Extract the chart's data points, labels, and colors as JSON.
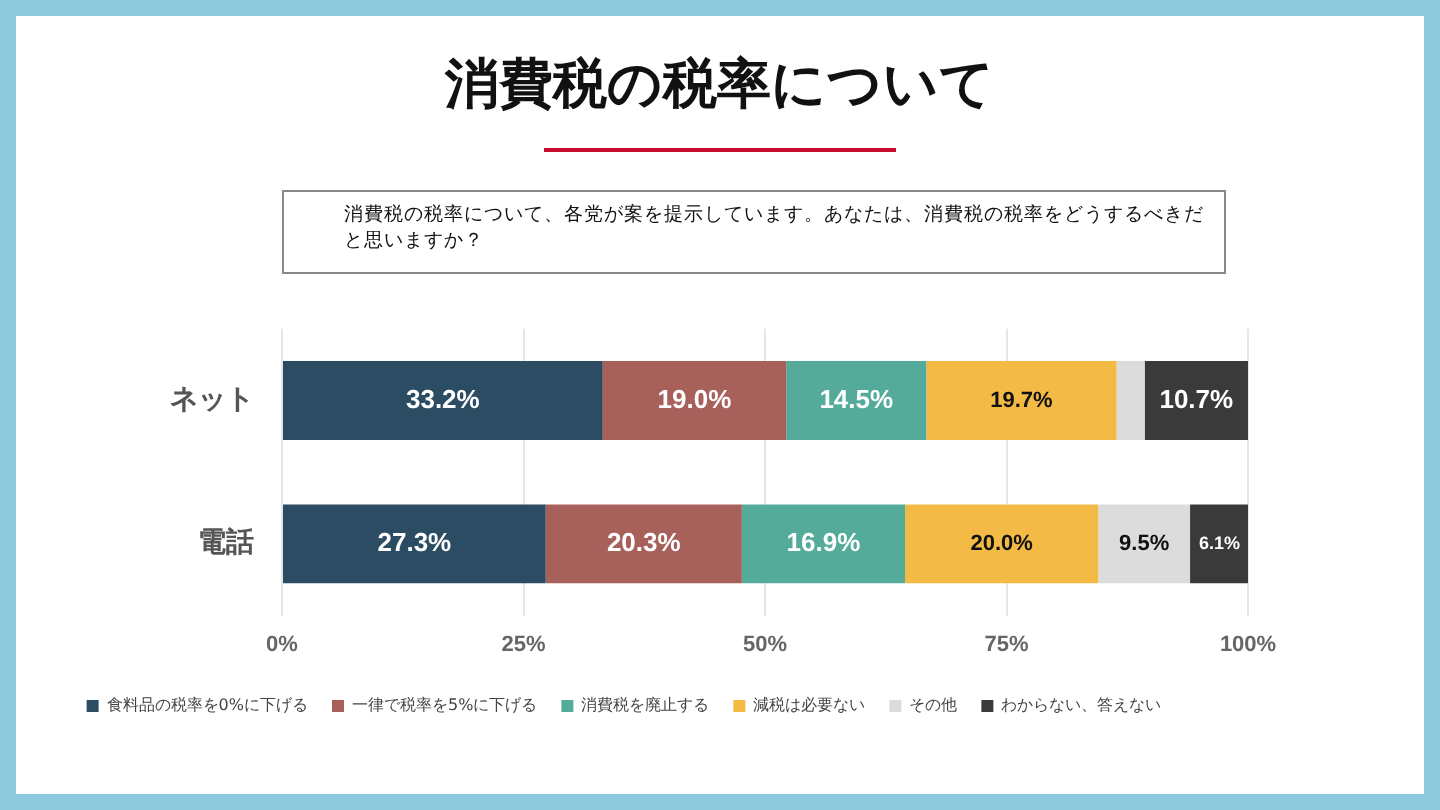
{
  "chart_data": {
    "type": "bar",
    "orientation": "horizontal",
    "stacked": true,
    "title": "消費税の税率について",
    "subtitle": "消費税の税率について、各党が案を提示しています。あなたは、消費税の税率をどうするべきだと思いますか？",
    "categories": [
      "ネット",
      "電話"
    ],
    "series": [
      {
        "name": "食料品の税率を0%に下げる",
        "color": "#2b4c63",
        "values": [
          33.2,
          27.3
        ],
        "value_labels": [
          "33.2%",
          "27.3%"
        ]
      },
      {
        "name": "一律で税率を5%に下げる",
        "color": "#a7605a",
        "values": [
          19.0,
          20.3
        ],
        "value_labels": [
          "19.0%",
          "20.3%"
        ]
      },
      {
        "name": "消費税を廃止する",
        "color": "#55ab9a",
        "values": [
          14.5,
          16.9
        ],
        "value_labels": [
          "14.5%",
          "16.9%"
        ]
      },
      {
        "name": "減税は必要ない",
        "color": "#f3bb45",
        "values": [
          19.7,
          20.0
        ],
        "value_labels": [
          "19.7%",
          "20.0%"
        ]
      },
      {
        "name": "その他",
        "color": "#dcdcdc",
        "values": [
          2.9,
          9.5
        ],
        "value_labels": [
          null,
          "9.5%"
        ]
      },
      {
        "name": "わからない、答えない",
        "color": "#3a3a3a",
        "values": [
          10.7,
          6.1
        ],
        "value_labels": [
          "10.7%",
          "6.1%"
        ]
      }
    ],
    "xlim": [
      0,
      100
    ],
    "xticks": [
      {
        "value": 0,
        "label": "0%"
      },
      {
        "value": 25,
        "label": "25%"
      },
      {
        "value": 50,
        "label": "50%"
      },
      {
        "value": 75,
        "label": "75%"
      },
      {
        "value": 100,
        "label": "100%"
      }
    ],
    "grid": "x",
    "legend": "bottom"
  }
}
